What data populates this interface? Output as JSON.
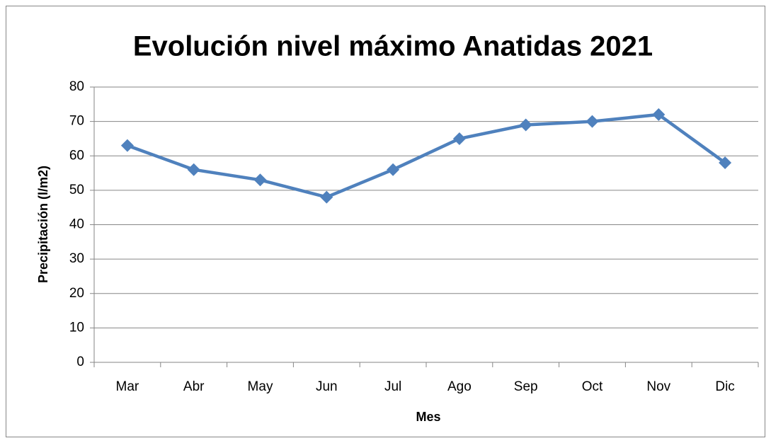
{
  "chart_data": {
    "type": "line",
    "title": "Evolución nivel máximo Anatidas 2021",
    "x_label": "Mes",
    "y_label": "Precipitación (l/m2)",
    "categories": [
      "Mar",
      "Abr",
      "May",
      "Jun",
      "Jul",
      "Ago",
      "Sep",
      "Oct",
      "Nov",
      "Dic"
    ],
    "values": [
      63,
      56,
      53,
      48,
      56,
      65,
      69,
      70,
      72,
      58
    ],
    "color": "#4f81bd",
    "marker": "diamond",
    "ylim": [
      0,
      80
    ],
    "yticks": [
      0,
      10,
      20,
      30,
      40,
      50,
      60,
      70,
      80
    ],
    "grid": true
  }
}
